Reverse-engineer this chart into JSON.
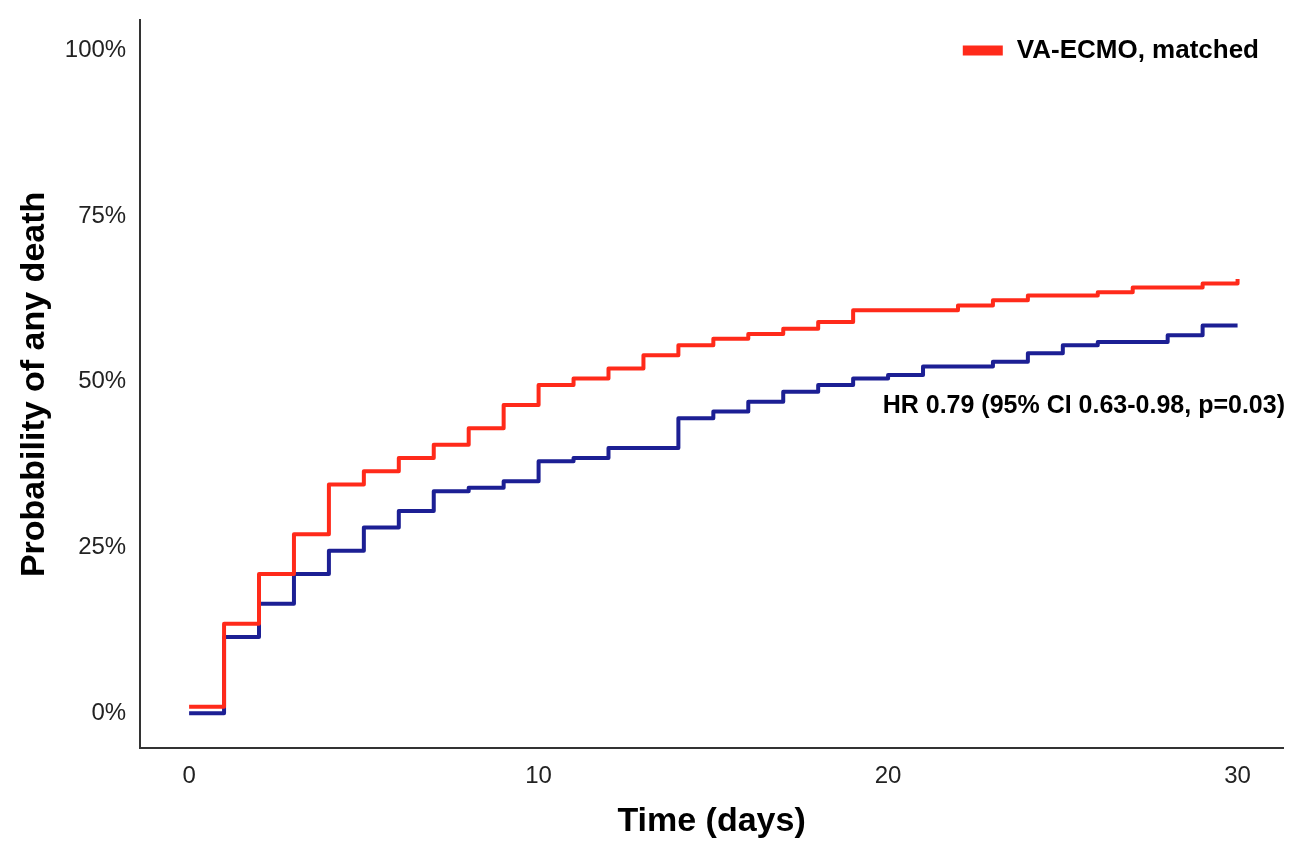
{
  "chart_data": {
    "type": "step",
    "xlabel": "Time (days)",
    "ylabel": "Probability of any death",
    "series": [
      {
        "name": "VA-ECMO, matched",
        "color": "#ff2a1a",
        "x": [
          0,
          1,
          2,
          3,
          4,
          5,
          6,
          7,
          8,
          9,
          10,
          11,
          12,
          13,
          14,
          15,
          16,
          17,
          18,
          19,
          22,
          23,
          24,
          26,
          27,
          29,
          30
        ],
        "values": [
          1,
          13.5,
          21,
          27,
          34.5,
          36.5,
          38.5,
          40.5,
          43,
          46.5,
          49.5,
          50.5,
          52,
          54,
          55.5,
          56.5,
          57.2,
          58,
          59,
          60.8,
          61.5,
          62.3,
          63,
          63.5,
          64.2,
          64.8,
          65.5
        ]
      },
      {
        "color": "#1c1f94",
        "x": [
          0,
          1,
          2,
          3,
          4,
          5,
          6,
          7,
          8,
          9,
          10,
          11,
          12,
          14,
          15,
          16,
          17,
          18,
          19,
          20,
          21,
          23,
          24,
          25,
          26,
          28,
          29,
          30
        ],
        "values": [
          0,
          11.5,
          16.5,
          21,
          24.5,
          28,
          30.5,
          33.5,
          34,
          35,
          38,
          38.5,
          40,
          44.5,
          45.5,
          47,
          48.5,
          49.5,
          50.5,
          51,
          52.3,
          53,
          54.3,
          55.5,
          56,
          57,
          58.5,
          58.5
        ]
      }
    ],
    "xlim": [
      -1.4,
      31.3
    ],
    "xticks": [
      0,
      10,
      20,
      30
    ],
    "ylim": [
      -5.3,
      104.5
    ],
    "yticks": [
      {
        "value": 0,
        "label": "0%"
      },
      {
        "value": 25,
        "label": "25%"
      },
      {
        "value": 50,
        "label": "50%"
      },
      {
        "value": 75,
        "label": "75%"
      },
      {
        "value": 100,
        "label": "100%"
      }
    ],
    "grid": false,
    "legend": "top right",
    "line_style": "solid",
    "marker": "none",
    "annotations": [
      "HR 0.79 (95% CI 0.63-0.98, p=0.03)"
    ]
  }
}
